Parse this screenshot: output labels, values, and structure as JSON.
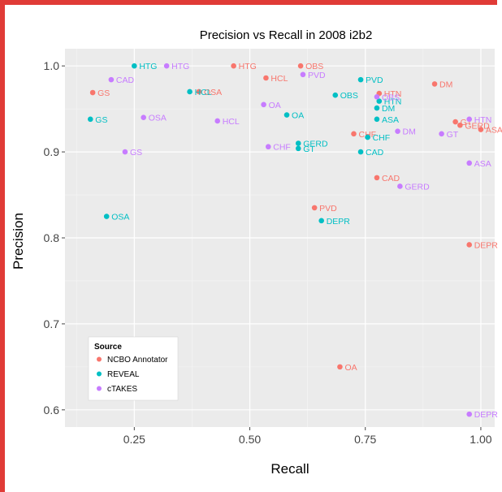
{
  "chart_data": {
    "type": "scatter",
    "title": "Precision vs Recall in 2008 i2b2",
    "xlabel": "Recall",
    "ylabel": "Precision",
    "xlim": [
      0.1,
      1.03
    ],
    "ylim": [
      0.58,
      1.02
    ],
    "x_ticks": [
      0.25,
      0.5,
      0.75,
      1.0
    ],
    "x_tick_labels": [
      "0.25",
      "0.50",
      "0.75",
      "1.00"
    ],
    "y_ticks": [
      0.6,
      0.7,
      0.8,
      0.9,
      1.0
    ],
    "y_tick_labels": [
      "0.6",
      "0.7",
      "0.8",
      "0.9",
      "1.0"
    ],
    "grid": true,
    "legend": {
      "title": "Source",
      "placement": "bottom-left",
      "entries": [
        "NCBO Annotator",
        "REVEAL",
        "cTAKES"
      ]
    },
    "series": [
      {
        "name": "NCBO Annotator",
        "color": "#f8766d",
        "points": [
          {
            "label": "GS",
            "x": 0.16,
            "y": 0.969
          },
          {
            "label": "HTG",
            "x": 0.465,
            "y": 1.0
          },
          {
            "label": "OSA",
            "x": 0.39,
            "y": 0.97
          },
          {
            "label": "HCL",
            "x": 0.535,
            "y": 0.986
          },
          {
            "label": "OBS",
            "x": 0.61,
            "y": 1.0
          },
          {
            "label": "HTN",
            "x": 0.78,
            "y": 0.968
          },
          {
            "label": "DM",
            "x": 0.9,
            "y": 0.979
          },
          {
            "label": "CHF",
            "x": 0.725,
            "y": 0.921
          },
          {
            "label": "GT",
            "x": 0.945,
            "y": 0.935
          },
          {
            "label": "GERD",
            "x": 0.955,
            "y": 0.931
          },
          {
            "label": "ASA",
            "x": 1.0,
            "y": 0.926
          },
          {
            "label": "CAD",
            "x": 0.775,
            "y": 0.87
          },
          {
            "label": "PVD",
            "x": 0.64,
            "y": 0.835
          },
          {
            "label": "DEPR",
            "x": 0.975,
            "y": 0.792
          },
          {
            "label": "OA",
            "x": 0.695,
            "y": 0.65
          }
        ]
      },
      {
        "name": "REVEAL",
        "color": "#00bfc4",
        "points": [
          {
            "label": "HTG",
            "x": 0.25,
            "y": 1.0
          },
          {
            "label": "HCL",
            "x": 0.37,
            "y": 0.97
          },
          {
            "label": "GS",
            "x": 0.155,
            "y": 0.938
          },
          {
            "label": "OA",
            "x": 0.58,
            "y": 0.943
          },
          {
            "label": "OBS",
            "x": 0.685,
            "y": 0.966
          },
          {
            "label": "PVD",
            "x": 0.74,
            "y": 0.984
          },
          {
            "label": "HTN",
            "x": 0.78,
            "y": 0.959
          },
          {
            "label": "DM",
            "x": 0.775,
            "y": 0.951
          },
          {
            "label": "ASA",
            "x": 0.775,
            "y": 0.938
          },
          {
            "label": "CHF",
            "x": 0.755,
            "y": 0.917
          },
          {
            "label": "GERD",
            "x": 0.605,
            "y": 0.91
          },
          {
            "label": "GT",
            "x": 0.605,
            "y": 0.904
          },
          {
            "label": "CAD",
            "x": 0.74,
            "y": 0.9
          },
          {
            "label": "OSA",
            "x": 0.19,
            "y": 0.825
          },
          {
            "label": "DEPR",
            "x": 0.655,
            "y": 0.82
          }
        ]
      },
      {
        "name": "cTAKES",
        "color": "#c77cff",
        "points": [
          {
            "label": "CAD",
            "x": 0.2,
            "y": 0.984
          },
          {
            "label": "HTG",
            "x": 0.32,
            "y": 1.0
          },
          {
            "label": "OSA",
            "x": 0.27,
            "y": 0.94
          },
          {
            "label": "HCL",
            "x": 0.43,
            "y": 0.936
          },
          {
            "label": "OA",
            "x": 0.53,
            "y": 0.955
          },
          {
            "label": "PVD",
            "x": 0.615,
            "y": 0.99
          },
          {
            "label": "OBS",
            "x": 0.775,
            "y": 0.964
          },
          {
            "label": "CHF",
            "x": 0.54,
            "y": 0.906
          },
          {
            "label": "GS",
            "x": 0.23,
            "y": 0.9
          },
          {
            "label": "DM",
            "x": 0.82,
            "y": 0.924
          },
          {
            "label": "GT",
            "x": 0.915,
            "y": 0.921
          },
          {
            "label": "HTN",
            "x": 0.975,
            "y": 0.938
          },
          {
            "label": "ASA",
            "x": 0.975,
            "y": 0.887
          },
          {
            "label": "GERD",
            "x": 0.825,
            "y": 0.86
          },
          {
            "label": "DEPR",
            "x": 0.975,
            "y": 0.595
          }
        ]
      }
    ]
  }
}
